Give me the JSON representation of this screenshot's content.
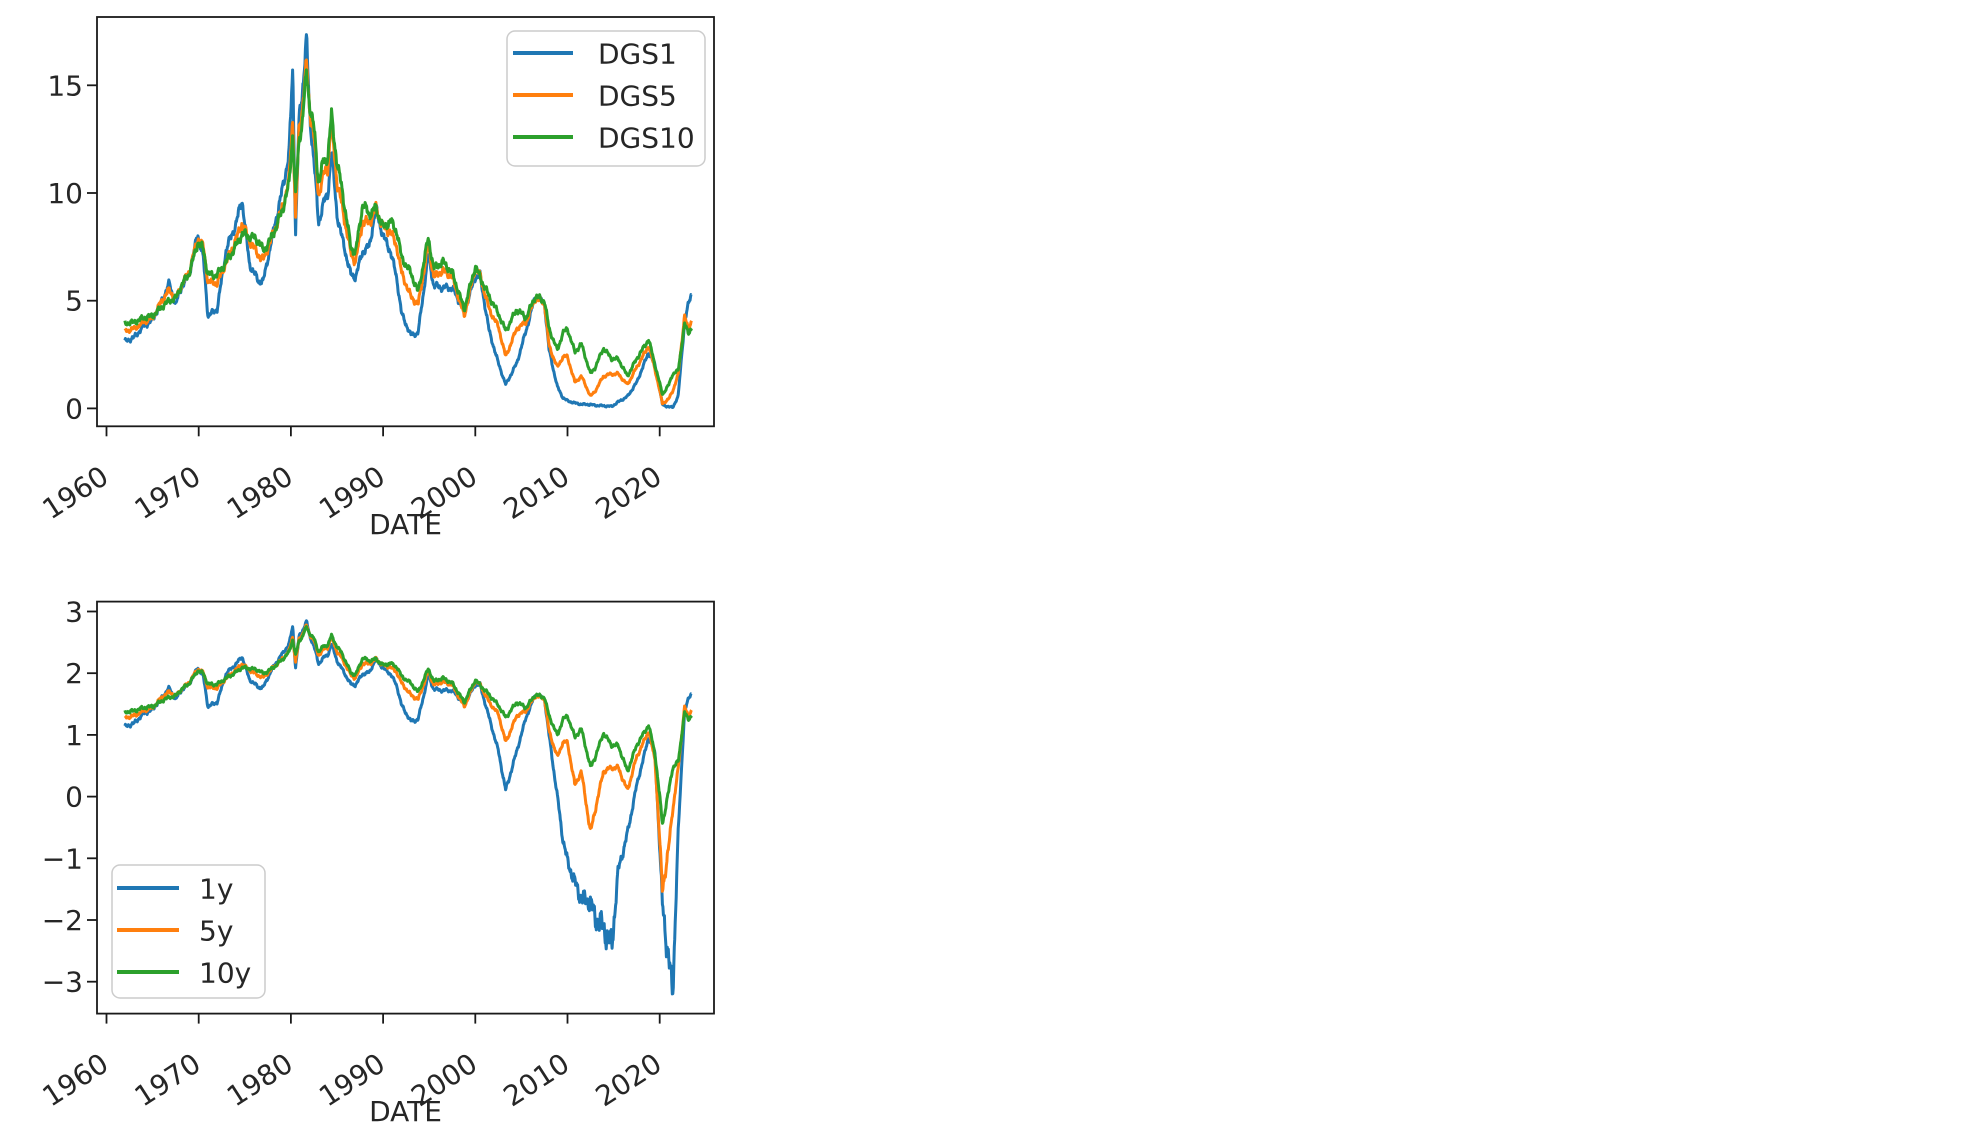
{
  "figure": {
    "background": "#ffffff",
    "text_color": "#262626",
    "spine_color": "#1a1a1a"
  },
  "chart_data": [
    {
      "type": "line",
      "title": "",
      "xlabel": "DATE",
      "ylabel": "",
      "grid": false,
      "legend_position": "upper right",
      "x_tick_labels": [
        "1960",
        "1970",
        "1980",
        "1990",
        "2000",
        "2010",
        "2020"
      ],
      "x_ticks": [
        1960,
        1970,
        1980,
        1990,
        2000,
        2010,
        2020
      ],
      "y_tick_labels": [
        "0",
        "5",
        "10",
        "15"
      ],
      "y_ticks": [
        0,
        5,
        10,
        15
      ],
      "ylim": [
        -0.83,
        18.17
      ],
      "xlim": [
        1958.97,
        2025.9
      ],
      "x": [
        1962,
        1963,
        1964,
        1965,
        1966,
        1966.8,
        1967.5,
        1968,
        1969,
        1969.9,
        1970.5,
        1971,
        1972,
        1973,
        1974,
        1974.7,
        1975.5,
        1976.5,
        1977,
        1978,
        1979,
        1979.8,
        1980.2,
        1980.5,
        1980.9,
        1981.2,
        1981.7,
        1982,
        1982.5,
        1983,
        1983.5,
        1984,
        1984.4,
        1985,
        1985.5,
        1986.5,
        1987,
        1987.8,
        1988.5,
        1989.2,
        1990,
        1990.8,
        1991.5,
        1992,
        1993,
        1993.8,
        1994.9,
        1995.5,
        1996.5,
        1997.5,
        1998.8,
        2000,
        2000.5,
        2001.5,
        2002.5,
        2003.3,
        2004.5,
        2005.5,
        2006.5,
        2007.5,
        2008,
        2008.9,
        2009.5,
        2010,
        2010.8,
        2011.5,
        2012.5,
        2013,
        2013.9,
        2014.8,
        2015.5,
        2016.5,
        2017.5,
        2018.8,
        2019.5,
        2020.3,
        2021,
        2021.4,
        2022,
        2022.7,
        2023.1,
        2023.45
      ],
      "series": [
        {
          "name": "DGS1",
          "color": "#1f77b4",
          "values": [
            3.1,
            3.3,
            3.8,
            4.1,
            5.0,
            5.8,
            4.8,
            5.5,
            6.3,
            8.1,
            7.0,
            4.3,
            4.6,
            7.4,
            8.5,
            9.7,
            6.7,
            5.9,
            5.9,
            8.0,
            10.0,
            11.8,
            15.8,
            8.0,
            13.5,
            14.5,
            17.2,
            13.8,
            11.5,
            8.6,
            9.5,
            9.9,
            12.0,
            9.0,
            8.0,
            6.2,
            6.1,
            7.3,
            7.5,
            9.3,
            8.0,
            7.3,
            6.0,
            4.4,
            3.4,
            3.5,
            7.1,
            5.7,
            5.6,
            5.6,
            4.5,
            6.1,
            6.2,
            3.6,
            2.1,
            1.1,
            2.1,
            3.6,
            5.2,
            4.9,
            2.7,
            1.0,
            0.5,
            0.35,
            0.25,
            0.19,
            0.18,
            0.14,
            0.12,
            0.09,
            0.3,
            0.55,
            1.2,
            2.6,
            2.0,
            0.17,
            0.07,
            0.04,
            0.55,
            4.0,
            4.8,
            5.35
          ]
        },
        {
          "name": "DGS5",
          "color": "#ff7f0e",
          "values": [
            3.6,
            3.7,
            4.0,
            4.2,
            5.0,
            5.5,
            5.1,
            5.6,
            6.4,
            7.9,
            7.5,
            5.9,
            5.8,
            6.8,
            7.8,
            8.6,
            7.8,
            7.1,
            6.9,
            8.0,
            9.2,
            10.6,
            13.5,
            8.8,
            13.0,
            13.8,
            16.0,
            14.0,
            12.6,
            9.9,
            10.8,
            11.2,
            13.3,
            10.5,
            9.5,
            7.2,
            6.8,
            8.7,
            8.6,
            9.3,
            8.4,
            8.2,
            7.5,
            6.3,
            5.2,
            4.8,
            7.6,
            6.1,
            6.4,
            6.1,
            4.3,
            6.5,
            6.2,
            4.6,
            3.8,
            2.4,
            3.7,
            4.0,
            5.1,
            4.9,
            2.9,
            1.9,
            2.4,
            2.4,
            1.2,
            1.5,
            0.56,
            0.8,
            1.5,
            1.6,
            1.6,
            1.1,
            1.9,
            2.9,
            1.8,
            0.22,
            0.45,
            0.8,
            1.55,
            4.3,
            3.6,
            4.1
          ]
        },
        {
          "name": "DGS10",
          "color": "#2ca02c",
          "values": [
            3.95,
            4.0,
            4.2,
            4.3,
            4.7,
            5.0,
            5.1,
            5.6,
            6.3,
            7.7,
            7.4,
            6.2,
            6.2,
            6.8,
            7.5,
            8.1,
            8.0,
            7.8,
            7.3,
            8.0,
            9.1,
            10.4,
            12.8,
            9.8,
            12.5,
            13.2,
            15.6,
            14.2,
            13.0,
            10.5,
            11.4,
            11.7,
            13.6,
            11.4,
            10.3,
            7.5,
            7.2,
            9.5,
            9.0,
            9.3,
            8.4,
            8.7,
            8.2,
            7.0,
            6.3,
            5.4,
            7.9,
            6.5,
            6.8,
            6.3,
            4.6,
            6.6,
            6.1,
            5.2,
            4.4,
            3.6,
            4.6,
            4.2,
            5.2,
            5.0,
            3.7,
            2.7,
            3.5,
            3.7,
            2.6,
            3.0,
            1.6,
            1.9,
            2.8,
            2.3,
            2.3,
            1.5,
            2.3,
            3.2,
            2.0,
            0.65,
            1.1,
            1.6,
            1.75,
            3.9,
            3.5,
            3.75
          ]
        }
      ]
    },
    {
      "type": "line",
      "title": "",
      "xlabel": "DATE",
      "ylabel": "",
      "grid": false,
      "legend_position": "lower left",
      "x_tick_labels": [
        "1960",
        "1970",
        "1980",
        "1990",
        "2000",
        "2010",
        "2020"
      ],
      "x_ticks": [
        1960,
        1970,
        1980,
        1990,
        2000,
        2010,
        2020
      ],
      "y_tick_labels": [
        "3",
        "2",
        "1",
        "0",
        "−1",
        "−2",
        "−3"
      ],
      "y_ticks": [
        3,
        2,
        1,
        0,
        -1,
        -2,
        -3
      ],
      "ylim": [
        -3.52,
        3.16
      ],
      "xlim": [
        1958.97,
        2025.9
      ],
      "x": [
        1962,
        1963,
        1964,
        1965,
        1966,
        1966.8,
        1967.5,
        1968,
        1969,
        1969.9,
        1970.5,
        1971,
        1972,
        1973,
        1974,
        1974.7,
        1975.5,
        1976.5,
        1977,
        1978,
        1979,
        1979.8,
        1980.2,
        1980.5,
        1980.9,
        1981.2,
        1981.7,
        1982,
        1982.5,
        1983,
        1983.5,
        1984,
        1984.4,
        1985,
        1985.5,
        1986.5,
        1987,
        1987.8,
        1988.5,
        1989.2,
        1990,
        1990.8,
        1991.5,
        1992,
        1993,
        1993.8,
        1994.9,
        1995.5,
        1996.5,
        1997.5,
        1998.8,
        2000,
        2000.5,
        2001.5,
        2002.5,
        2003.3,
        2004.5,
        2005.5,
        2006.5,
        2007.5,
        2008,
        2008.9,
        2009.5,
        2010,
        2010.8,
        2011.5,
        2012.5,
        2013,
        2013.9,
        2014.8,
        2015.5,
        2016.5,
        2017.5,
        2018.8,
        2019.5,
        2020.3,
        2021,
        2021.4,
        2022,
        2022.7,
        2023.1,
        2023.45
      ],
      "series": [
        {
          "name": "1y",
          "color": "#1f77b4",
          "values": [
            1.13,
            1.19,
            1.34,
            1.41,
            1.61,
            1.76,
            1.57,
            1.7,
            1.84,
            2.09,
            1.95,
            1.46,
            1.53,
            2.0,
            2.14,
            2.27,
            1.9,
            1.77,
            1.77,
            2.08,
            2.3,
            2.47,
            2.76,
            2.08,
            2.6,
            2.67,
            2.84,
            2.62,
            2.44,
            2.15,
            2.25,
            2.29,
            2.48,
            2.2,
            2.08,
            1.82,
            1.81,
            1.99,
            2.01,
            2.23,
            2.08,
            1.99,
            1.79,
            1.48,
            1.22,
            1.25,
            1.96,
            1.74,
            1.72,
            1.72,
            1.5,
            1.81,
            1.82,
            1.28,
            0.74,
            0.1,
            0.74,
            1.28,
            1.65,
            1.59,
            0.99,
            0.0,
            -0.69,
            -1.05,
            -1.39,
            -1.66,
            -1.71,
            -1.97,
            -2.12,
            -2.41,
            -1.2,
            -0.6,
            0.18,
            0.96,
            0.69,
            -1.77,
            -2.66,
            -3.22,
            -0.6,
            1.39,
            1.57,
            1.68
          ]
        },
        {
          "name": "5y",
          "color": "#ff7f0e",
          "values": [
            1.28,
            1.31,
            1.39,
            1.44,
            1.61,
            1.7,
            1.63,
            1.72,
            1.86,
            2.07,
            2.01,
            1.77,
            1.76,
            1.92,
            2.05,
            2.15,
            2.05,
            1.96,
            1.93,
            2.08,
            2.22,
            2.36,
            2.6,
            2.17,
            2.56,
            2.62,
            2.77,
            2.64,
            2.53,
            2.29,
            2.38,
            2.42,
            2.59,
            2.35,
            2.25,
            1.97,
            1.92,
            2.16,
            2.15,
            2.23,
            2.13,
            2.1,
            2.01,
            1.84,
            1.65,
            1.57,
            2.03,
            1.81,
            1.86,
            1.81,
            1.46,
            1.87,
            1.82,
            1.53,
            1.34,
            0.88,
            1.31,
            1.39,
            1.63,
            1.59,
            1.06,
            0.64,
            0.88,
            0.88,
            0.18,
            0.41,
            -0.58,
            -0.22,
            0.41,
            0.47,
            0.47,
            0.1,
            0.64,
            1.06,
            0.59,
            -1.51,
            -0.8,
            -0.22,
            0.44,
            1.46,
            1.28,
            1.41
          ]
        },
        {
          "name": "10y",
          "color": "#2ca02c",
          "values": [
            1.37,
            1.39,
            1.44,
            1.46,
            1.55,
            1.61,
            1.63,
            1.72,
            1.84,
            2.04,
            2.0,
            1.82,
            1.82,
            1.92,
            2.01,
            2.09,
            2.08,
            2.05,
            1.99,
            2.08,
            2.21,
            2.34,
            2.55,
            2.28,
            2.53,
            2.58,
            2.75,
            2.65,
            2.56,
            2.35,
            2.43,
            2.46,
            2.61,
            2.43,
            2.33,
            2.01,
            1.97,
            2.25,
            2.2,
            2.23,
            2.13,
            2.16,
            2.1,
            1.95,
            1.84,
            1.69,
            2.07,
            1.87,
            1.92,
            1.84,
            1.53,
            1.89,
            1.81,
            1.65,
            1.48,
            1.28,
            1.53,
            1.44,
            1.65,
            1.61,
            1.31,
            0.99,
            1.25,
            1.31,
            0.96,
            1.1,
            0.47,
            0.64,
            1.03,
            0.83,
            0.83,
            0.41,
            0.83,
            1.16,
            0.69,
            -0.43,
            0.1,
            0.47,
            0.56,
            1.36,
            1.25,
            1.32
          ]
        }
      ]
    }
  ]
}
